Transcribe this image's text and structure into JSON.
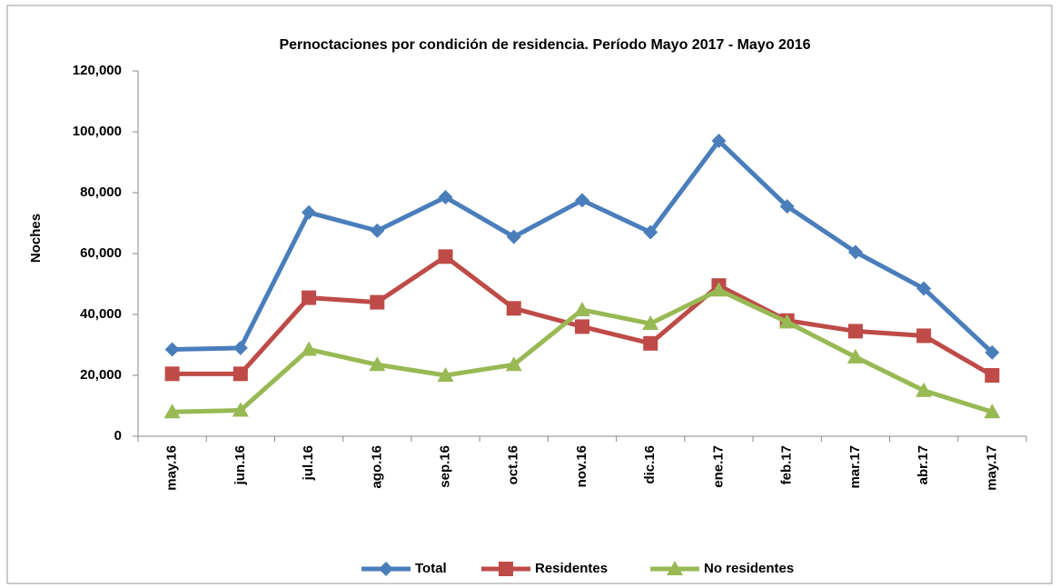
{
  "chart_data": {
    "type": "line",
    "title": "Pernoctaciones por condición de residencia. Período Mayo 2017 - Mayo 2016",
    "y_label": "Noches",
    "categories": [
      "may.16",
      "jun.16",
      "jul.16",
      "ago.16",
      "sep.16",
      "oct.16",
      "nov.16",
      "dic.16",
      "ene.17",
      "feb.17",
      "mar.17",
      "abr.17",
      "may.17"
    ],
    "series": [
      {
        "name": "Total",
        "color": "#4a7ebb",
        "marker": "diamond",
        "values": [
          28500,
          29000,
          73500,
          67500,
          78500,
          65500,
          77500,
          67000,
          97000,
          75500,
          60500,
          48500,
          27500
        ]
      },
      {
        "name": "Residentes",
        "color": "#be4b48",
        "marker": "square",
        "values": [
          20500,
          20500,
          45500,
          44000,
          59000,
          42000,
          36000,
          30500,
          49500,
          38000,
          34500,
          33000,
          20000
        ]
      },
      {
        "name": "No residentes",
        "color": "#98b954",
        "marker": "triangle",
        "values": [
          8000,
          8500,
          28500,
          23500,
          20000,
          23500,
          41500,
          37000,
          48000,
          37500,
          26000,
          15000,
          8000
        ]
      }
    ],
    "ylim": [
      0,
      120000
    ],
    "yticks": [
      0,
      {
        "value": 20000,
        "label": "20,000"
      },
      {
        "value": 40000,
        "label": "40,000"
      },
      {
        "value": 60000,
        "label": "60,000"
      },
      {
        "value": 80000,
        "label": "80,000"
      },
      {
        "value": 100000,
        "label": "100,000"
      },
      {
        "value": 120000,
        "label": "120,000"
      }
    ],
    "grid": false,
    "legend": "bottom"
  }
}
